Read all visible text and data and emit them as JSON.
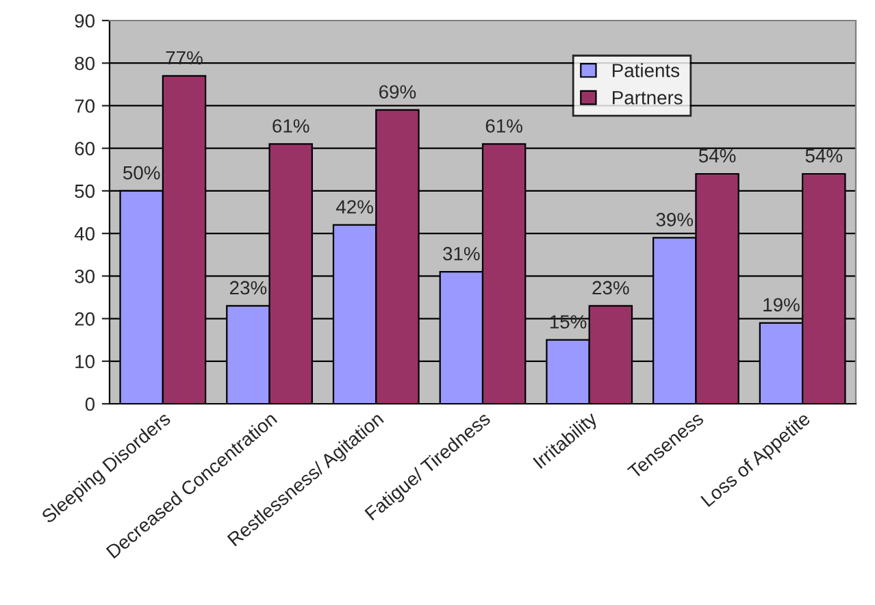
{
  "chart_data": {
    "type": "bar",
    "categories": [
      "Sleeping Disorders",
      "Decreased Concentration",
      "Restlessness/ Agitation",
      "Fatigue/ Tiredness",
      "Irritability",
      "Tenseness",
      "Loss of Appetite"
    ],
    "series": [
      {
        "name": "Patients",
        "color": "#9999ff",
        "values": [
          50,
          23,
          42,
          31,
          15,
          39,
          19
        ],
        "value_labels": [
          "50%",
          "23%",
          "42%",
          "31%",
          "15%",
          "39%",
          "19%"
        ]
      },
      {
        "name": "Partners",
        "color": "#993366",
        "values": [
          77,
          61,
          69,
          61,
          23,
          54,
          54
        ],
        "value_labels": [
          "77%",
          "61%",
          "69%",
          "61%",
          "23%",
          "54%",
          "54%"
        ]
      }
    ],
    "ylim": [
      0,
      90
    ],
    "yticks": [
      0,
      10,
      20,
      30,
      40,
      50,
      60,
      70,
      80,
      90
    ],
    "grid": "y",
    "legend": "top right"
  }
}
